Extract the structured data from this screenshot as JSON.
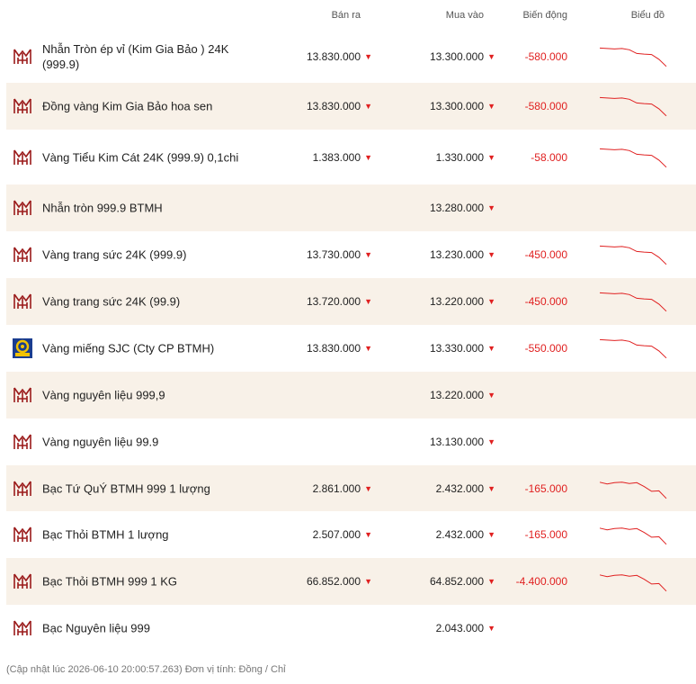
{
  "header": {
    "sell": "Bán ra",
    "buy": "Mua vào",
    "change": "Biến động",
    "chart": "Biểu đồ"
  },
  "colors": {
    "down": "#e02020",
    "brand": "#9b1b1b",
    "alt_row": "#f8f1e8",
    "sjc_blue": "#1a3d8f",
    "sjc_gold": "#f2c200"
  },
  "rows": [
    {
      "logo": "btmh-logo-icon",
      "name": "Nhẫn Tròn ép vỉ (Kim Gia Bảo ) 24K (999.9)",
      "sell": "13.830.000",
      "buy": "13.300.000",
      "change": "-580.000",
      "spark": [
        0.1,
        0.12,
        0.14,
        0.12,
        0.18,
        0.35,
        0.38,
        0.4,
        0.62,
        0.95
      ]
    },
    {
      "logo": "btmh-logo-icon",
      "name": "Đồng vàng Kim Gia Bảo hoa sen",
      "sell": "13.830.000",
      "buy": "13.300.000",
      "change": "-580.000",
      "spark": [
        0.1,
        0.12,
        0.14,
        0.12,
        0.18,
        0.35,
        0.38,
        0.4,
        0.62,
        0.95
      ]
    },
    {
      "logo": "btmh-logo-icon",
      "name": "Vàng Tiểu Kim Cát 24K (999.9) 0,1chi",
      "sell": "1.383.000",
      "buy": "1.330.000",
      "change": "-58.000",
      "spark": [
        0.1,
        0.12,
        0.14,
        0.12,
        0.18,
        0.35,
        0.38,
        0.4,
        0.62,
        0.95
      ]
    },
    {
      "logo": "btmh-logo-icon",
      "name": "Nhẫn tròn 999.9 BTMH",
      "sell": "",
      "buy": "13.280.000",
      "change": "",
      "spark": []
    },
    {
      "logo": "btmh-logo-icon",
      "name": "Vàng trang sức 24K (999.9)",
      "sell": "13.730.000",
      "buy": "13.230.000",
      "change": "-450.000",
      "spark": [
        0.1,
        0.12,
        0.14,
        0.12,
        0.18,
        0.35,
        0.38,
        0.4,
        0.62,
        0.95
      ]
    },
    {
      "logo": "btmh-logo-icon",
      "name": "Vàng trang sức 24K (99.9)",
      "sell": "13.720.000",
      "buy": "13.220.000",
      "change": "-450.000",
      "spark": [
        0.1,
        0.12,
        0.14,
        0.12,
        0.18,
        0.35,
        0.38,
        0.4,
        0.62,
        0.95
      ]
    },
    {
      "logo": "sjc-logo-icon",
      "name": "Vàng miếng SJC (Cty CP BTMH)",
      "sell": "13.830.000",
      "buy": "13.330.000",
      "change": "-550.000",
      "spark": [
        0.1,
        0.12,
        0.14,
        0.12,
        0.18,
        0.35,
        0.38,
        0.4,
        0.62,
        0.95
      ]
    },
    {
      "logo": "btmh-logo-icon",
      "name": "Vàng nguyên liệu 999,9",
      "sell": "",
      "buy": "13.220.000",
      "change": "",
      "spark": []
    },
    {
      "logo": "btmh-logo-icon",
      "name": "Vàng nguyên liệu 99.9",
      "sell": "",
      "buy": "13.130.000",
      "change": "",
      "spark": []
    },
    {
      "logo": "btmh-logo-icon",
      "name": "Bạc Tứ QuÝ BTMH 999 1 lượng",
      "sell": "2.861.000",
      "buy": "2.432.000",
      "change": "-165.000",
      "spark": [
        0.2,
        0.28,
        0.22,
        0.2,
        0.26,
        0.22,
        0.4,
        0.62,
        0.6,
        0.95
      ]
    },
    {
      "logo": "btmh-logo-icon",
      "name": "Bạc Thỏi BTMH 1 lượng",
      "sell": "2.507.000",
      "buy": "2.432.000",
      "change": "-165.000",
      "spark": [
        0.2,
        0.28,
        0.22,
        0.2,
        0.26,
        0.22,
        0.4,
        0.62,
        0.6,
        0.95
      ]
    },
    {
      "logo": "btmh-logo-icon",
      "name": "Bạc Thỏi BTMH 999 1 KG",
      "sell": "66.852.000",
      "buy": "64.852.000",
      "change": "-4.400.000",
      "spark": [
        0.2,
        0.28,
        0.22,
        0.2,
        0.26,
        0.22,
        0.4,
        0.62,
        0.6,
        0.95
      ]
    },
    {
      "logo": "btmh-logo-icon",
      "name": "Bạc Nguyên liệu 999",
      "sell": "",
      "buy": "2.043.000",
      "change": "",
      "spark": []
    }
  ],
  "footer": "(Cập nhật lúc 2026-06-10 20:00:57.263)   Đơn vị tính: Đồng / Chỉ"
}
